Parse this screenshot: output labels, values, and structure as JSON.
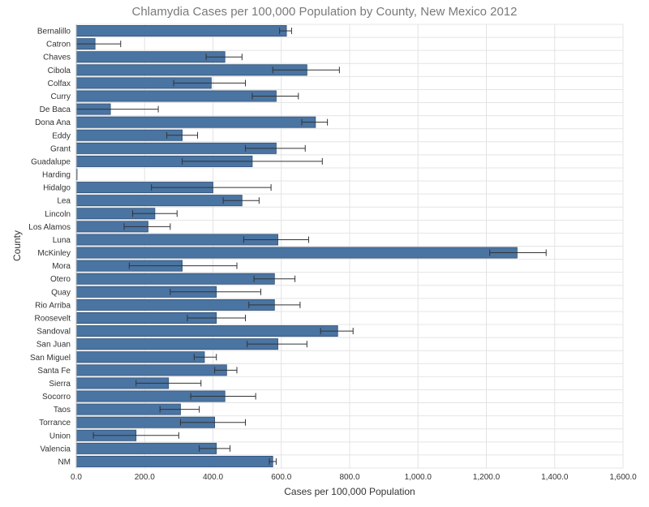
{
  "chart_data": {
    "type": "bar",
    "orientation": "horizontal",
    "title": "Chlamydia Cases per 100,000 Population by County, New Mexico 2012",
    "xlabel": "Cases per 100,000 Population",
    "ylabel": "County",
    "xlim": [
      0,
      1600
    ],
    "x_ticks": [
      "0.0",
      "200.0",
      "400.0",
      "600.0",
      "800.0",
      "1,000.0",
      "1,200.0",
      "1,400.0",
      "1,600.0"
    ],
    "x_tick_values": [
      0,
      200,
      400,
      600,
      800,
      1000,
      1200,
      1400,
      1600
    ],
    "grid": true,
    "bar_color": "#4a74a2",
    "bar_edge_color": "#2f4f75",
    "error_bar_color": "#333333",
    "categories": [
      "Bernalillo",
      "Catron",
      "Chaves",
      "Cibola",
      "Colfax",
      "Curry",
      "De Baca",
      "Dona Ana",
      "Eddy",
      "Grant",
      "Guadalupe",
      "Harding",
      "Hidalgo",
      "Lea",
      "Lincoln",
      "Los Alamos",
      "Luna",
      "McKinley",
      "Mora",
      "Otero",
      "Quay",
      "Rio Arriba",
      "Roosevelt",
      "Sandoval",
      "San Juan",
      "San Miguel",
      "Santa Fe",
      "Sierra",
      "Socorro",
      "Taos",
      "Torrance",
      "Union",
      "Valencia",
      "NM"
    ],
    "values": [
      615,
      55,
      435,
      675,
      395,
      585,
      100,
      700,
      310,
      585,
      515,
      0,
      400,
      485,
      230,
      210,
      590,
      1290,
      310,
      580,
      410,
      580,
      410,
      765,
      590,
      375,
      440,
      270,
      435,
      305,
      405,
      175,
      410,
      575
    ],
    "error_low": [
      595,
      0,
      380,
      575,
      285,
      515,
      0,
      660,
      265,
      495,
      310,
      0,
      220,
      430,
      165,
      140,
      490,
      1210,
      155,
      520,
      275,
      505,
      325,
      715,
      500,
      345,
      405,
      175,
      335,
      245,
      305,
      50,
      360,
      565
    ],
    "error_high": [
      630,
      130,
      485,
      770,
      495,
      650,
      240,
      735,
      355,
      670,
      720,
      0,
      570,
      535,
      295,
      275,
      680,
      1375,
      470,
      640,
      540,
      655,
      495,
      810,
      675,
      410,
      470,
      365,
      525,
      360,
      495,
      300,
      450,
      585
    ]
  }
}
